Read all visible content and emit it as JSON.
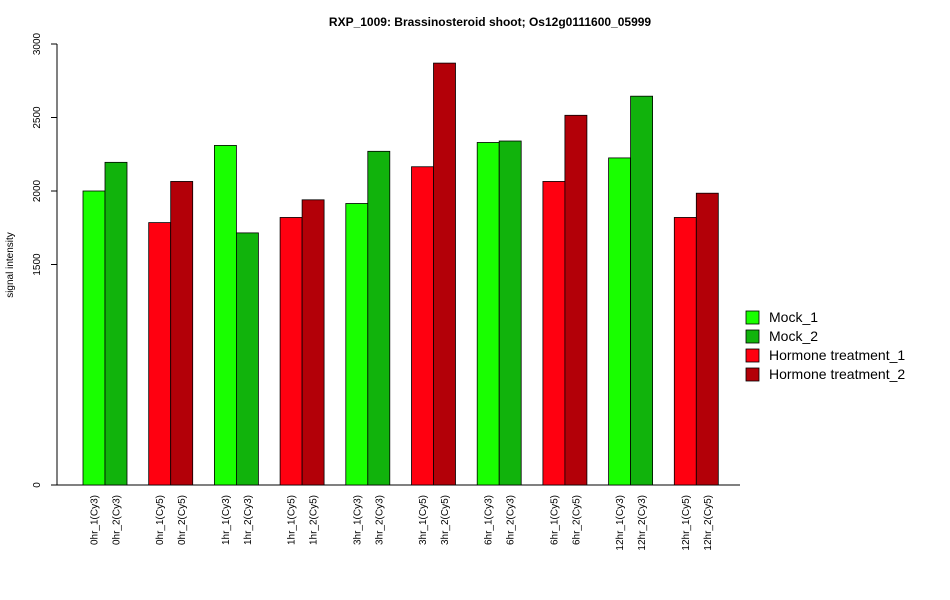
{
  "chart_data": {
    "type": "bar",
    "title": "RXP_1009: Brassinosteroid shoot; Os12g0111600_05999",
    "ylabel": "signal intensity",
    "xlabel": "",
    "ylim": [
      0,
      3000
    ],
    "yticks": [
      0,
      1500,
      2000,
      2500,
      3000
    ],
    "categories": [
      "0hr_1(Cy3)",
      "0hr_2(Cy3)",
      "0hr_1(Cy5)",
      "0hr_2(Cy5)",
      "1hr_1(Cy3)",
      "1hr_2(Cy3)",
      "1hr_1(Cy5)",
      "1hr_2(Cy5)",
      "3hr_1(Cy3)",
      "3hr_2(Cy3)",
      "3hr_1(Cy5)",
      "3hr_2(Cy5)",
      "6hr_1(Cy3)",
      "6hr_2(Cy3)",
      "6hr_1(Cy5)",
      "6hr_2(Cy5)",
      "12hr_1(Cy3)",
      "12hr_2(Cy3)",
      "12hr_1(Cy5)",
      "12hr_2(Cy5)"
    ],
    "values": [
      2000,
      2195,
      1785,
      2065,
      2310,
      1715,
      1820,
      1940,
      1915,
      2270,
      2165,
      2870,
      2330,
      2340,
      2065,
      2515,
      2225,
      2645,
      1820,
      1985
    ],
    "bar_series": [
      0,
      1,
      2,
      3,
      0,
      1,
      2,
      3,
      0,
      1,
      2,
      3,
      0,
      1,
      2,
      3,
      0,
      1,
      2,
      3
    ],
    "series": [
      {
        "name": "Mock_1",
        "color": "#19ff00"
      },
      {
        "name": "Mock_2",
        "color": "#11b30c"
      },
      {
        "name": "Hormone treatment_1",
        "color": "#ff0010"
      },
      {
        "name": "Hormone treatment_2",
        "color": "#b30008"
      }
    ],
    "legend_position": "right",
    "grid": false
  }
}
